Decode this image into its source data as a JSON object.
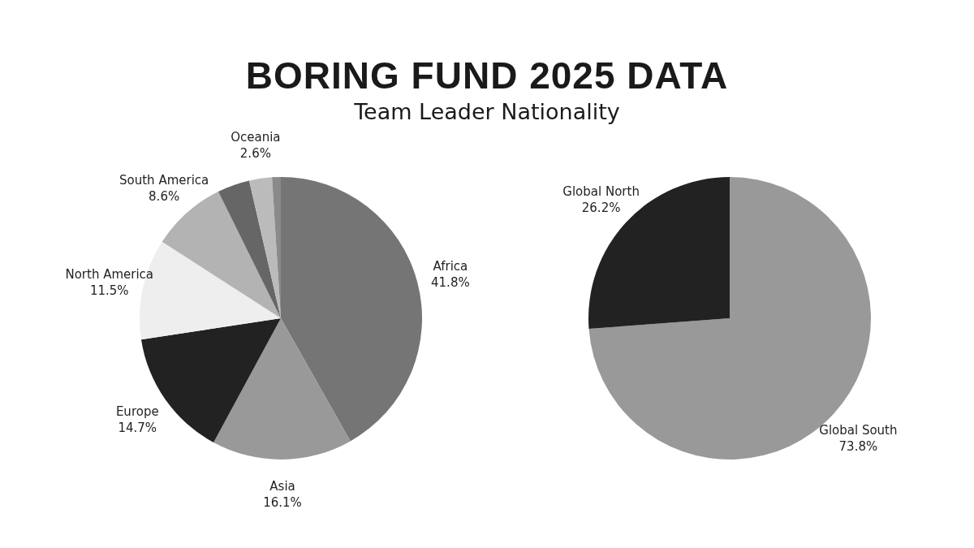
{
  "chart_data": [
    {
      "type": "pie",
      "title": "BORING FUND 2025 DATA",
      "subtitle": "Team Leader Nationality",
      "categories": [
        "Africa",
        "Asia",
        "Europe",
        "North America",
        "South America",
        null,
        "Oceania",
        null
      ],
      "values": [
        41.8,
        16.1,
        14.7,
        11.5,
        8.6,
        3.7,
        2.6,
        1.0
      ],
      "colors": [
        "#757575",
        "#999999",
        "#222222",
        "#eeeeee",
        "#b3b3b3",
        "#666666",
        "#bbbbbb",
        "#8a8a8a"
      ],
      "value_labels": [
        "41.8%",
        "16.1%",
        "14.7%",
        "11.5%",
        "8.6%",
        null,
        "2.6%",
        null
      ]
    },
    {
      "type": "pie",
      "categories": [
        "Global South",
        "Global North"
      ],
      "values": [
        73.8,
        26.2
      ],
      "colors": [
        "#999999",
        "#222222"
      ],
      "value_labels": [
        "73.8%",
        "26.2%"
      ]
    }
  ]
}
